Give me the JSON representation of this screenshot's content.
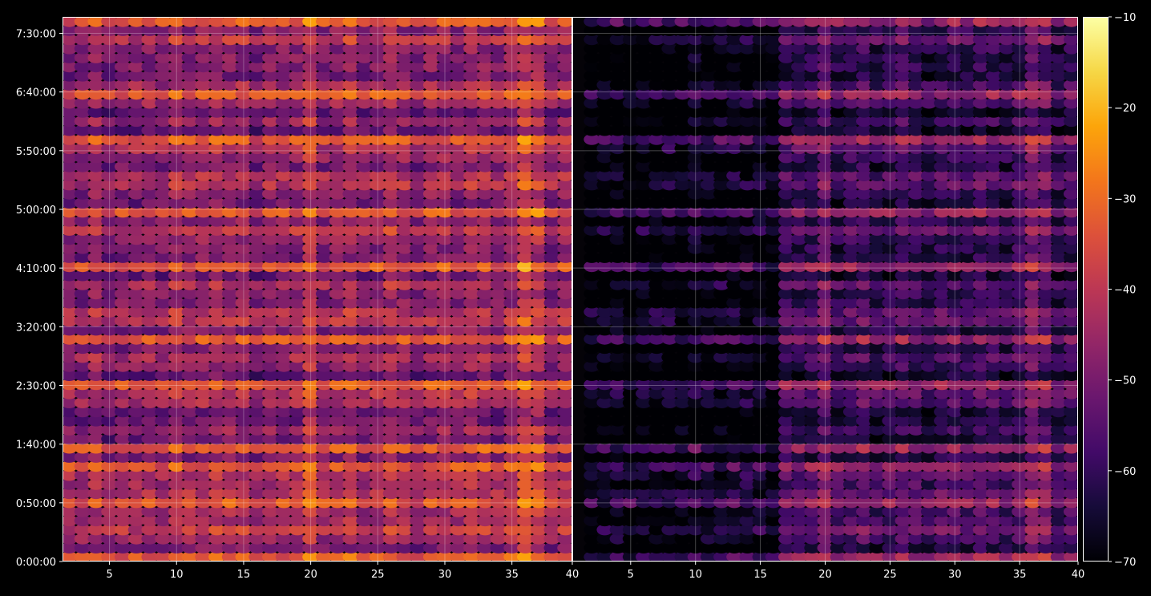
{
  "chart_data": {
    "type": "heatmap",
    "title": "",
    "xlabel": "",
    "ylabel": "",
    "background": "#000000",
    "grid": true,
    "grid_color": "#ffffff",
    "panels": [
      {
        "id": "left",
        "xlim": [
          1.5,
          39.5
        ],
        "x_ticks": [
          5,
          10,
          15,
          20,
          25,
          30,
          35
        ],
        "x_tick_labels": [
          "5",
          "10",
          "15",
          "20",
          "25",
          "30",
          "35"
        ],
        "right_edge_label": "40",
        "rows": 60,
        "columns": 38,
        "level_offset_db": 0
      },
      {
        "id": "right",
        "xlim": [
          0.5,
          39.5
        ],
        "x_ticks": [
          5,
          10,
          15,
          20,
          25,
          30,
          35
        ],
        "x_tick_labels": [
          "5",
          "10",
          "15",
          "20",
          "25",
          "30",
          "35"
        ],
        "right_edge_label": "40",
        "rows": 60,
        "columns": 38,
        "level_offset_db": -13,
        "dark_region": {
          "x_from": 1,
          "x_to": 16,
          "extra_offset_db": -12
        }
      }
    ],
    "y_axis": {
      "unit": "h:mm:ss",
      "ylim_seconds": [
        0,
        27840
      ],
      "tick_values_seconds": [
        0,
        3000,
        6000,
        9000,
        12000,
        15000,
        18000,
        21000,
        24000,
        27000
      ],
      "tick_labels": [
        "0:00:00",
        "0:50:00",
        "1:40:00",
        "2:30:00",
        "3:20:00",
        "4:10:00",
        "5:00:00",
        "5:50:00",
        "6:40:00",
        "7:30:00"
      ]
    },
    "colorbar": {
      "colormap": "inferno",
      "min": -70,
      "max": -10,
      "tick_values": [
        -70,
        -60,
        -50,
        -40,
        -30,
        -20,
        -10
      ],
      "tick_labels": [
        "−70",
        "−60",
        "−50",
        "−40",
        "−30",
        "−20",
        "−10"
      ]
    },
    "value_range_db": [
      -70,
      -10
    ],
    "bright_rows_seconds": [
      0,
      3000,
      4800,
      6000,
      9000,
      11400,
      15000,
      18000,
      21750,
      24000,
      27600
    ],
    "bright_columns": [
      20,
      36,
      37
    ]
  }
}
